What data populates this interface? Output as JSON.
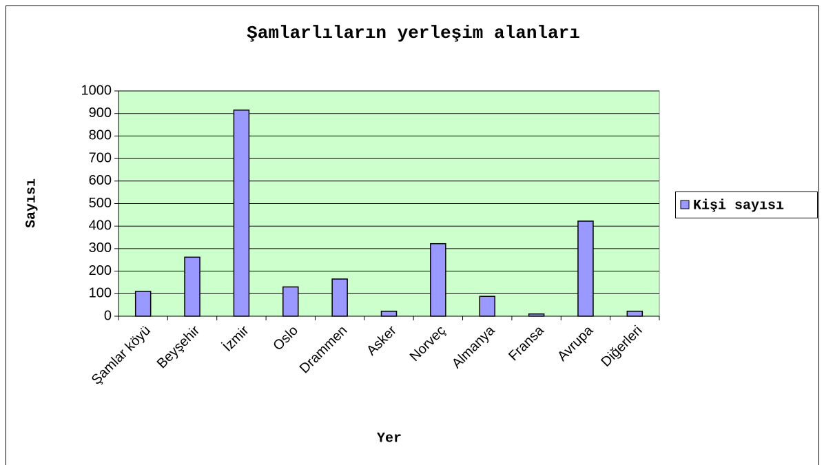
{
  "chart_data": {
    "type": "bar",
    "title": "Şamlarlıların yerleşim alanları",
    "x_label": "Yer",
    "y_label": "Sayısı",
    "categories": [
      "Şamlar köyü",
      "Beyşehir",
      "İzmir",
      "Oslo",
      "Drammen",
      "Asker",
      "Norveç",
      "Almanya",
      "Fransa",
      "Avrupa",
      "Diğerleri"
    ],
    "series": [
      {
        "name": "Kişi sayısı",
        "color": "#9999ff",
        "values": [
          110,
          262,
          915,
          130,
          165,
          22,
          322,
          88,
          10,
          422,
          22
        ]
      }
    ],
    "ylim": [
      0,
      1000
    ],
    "yticks": [
      0,
      100,
      200,
      300,
      400,
      500,
      600,
      700,
      800,
      900,
      1000
    ],
    "grid": true,
    "legend": "right",
    "plot_background": "#ccffcc"
  }
}
